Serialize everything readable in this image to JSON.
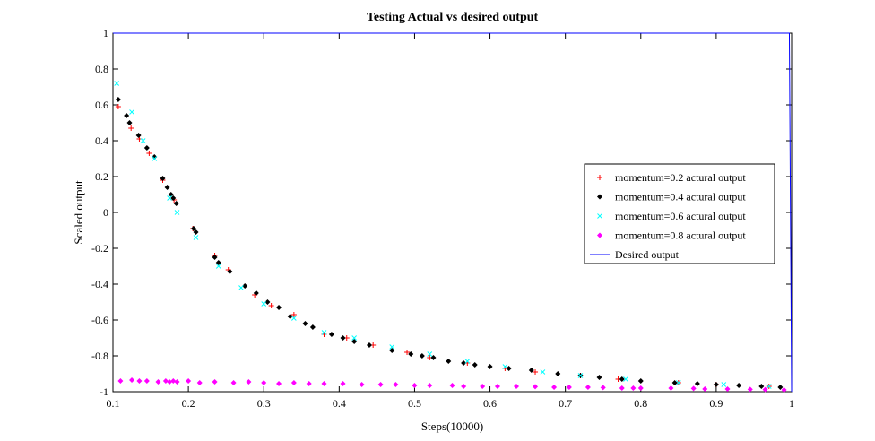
{
  "chart_data": {
    "type": "scatter",
    "title": "Testing Actual vs desired output",
    "xlabel": "Steps(10000)",
    "ylabel": "Scaled output",
    "xlim": [
      0.1,
      1.0
    ],
    "ylim": [
      -1,
      1
    ],
    "xticks": [
      "0.1",
      "0.2",
      "0.3",
      "0.4",
      "0.5",
      "0.6",
      "0.7",
      "0.8",
      "0.9",
      "1"
    ],
    "yticks": [
      "-1",
      "-0.8",
      "-0.6",
      "-0.4",
      "-0.2",
      "0",
      "0.2",
      "0.4",
      "0.6",
      "0.8",
      "1"
    ],
    "grid": false,
    "legend_position": "right",
    "series": [
      {
        "name": "momentum=0.2 actural output",
        "marker": "plus",
        "color": "#ff0000",
        "points": [
          [
            0.107,
            0.59
          ],
          [
            0.124,
            0.47
          ],
          [
            0.135,
            0.41
          ],
          [
            0.148,
            0.33
          ],
          [
            0.166,
            0.18
          ],
          [
            0.181,
            0.07
          ],
          [
            0.206,
            -0.09
          ],
          [
            0.235,
            -0.24
          ],
          [
            0.253,
            -0.32
          ],
          [
            0.288,
            -0.46
          ],
          [
            0.31,
            -0.52
          ],
          [
            0.34,
            -0.57
          ],
          [
            0.38,
            -0.68
          ],
          [
            0.41,
            -0.7
          ],
          [
            0.445,
            -0.74
          ],
          [
            0.49,
            -0.78
          ],
          [
            0.52,
            -0.81
          ],
          [
            0.57,
            -0.84
          ],
          [
            0.62,
            -0.87
          ],
          [
            0.66,
            -0.89
          ],
          [
            0.72,
            -0.91
          ],
          [
            0.77,
            -0.93
          ],
          [
            0.85,
            -0.95
          ],
          [
            0.9,
            -0.96
          ],
          [
            0.97,
            -0.97
          ]
        ]
      },
      {
        "name": "momentum=0.4 actural output",
        "marker": "diamond",
        "color": "#000000",
        "points": [
          [
            0.107,
            0.63
          ],
          [
            0.118,
            0.54
          ],
          [
            0.122,
            0.5
          ],
          [
            0.134,
            0.43
          ],
          [
            0.145,
            0.36
          ],
          [
            0.155,
            0.31
          ],
          [
            0.166,
            0.19
          ],
          [
            0.172,
            0.14
          ],
          [
            0.177,
            0.1
          ],
          [
            0.18,
            0.08
          ],
          [
            0.184,
            0.05
          ],
          [
            0.207,
            -0.09
          ],
          [
            0.21,
            -0.11
          ],
          [
            0.235,
            -0.25
          ],
          [
            0.24,
            -0.28
          ],
          [
            0.255,
            -0.33
          ],
          [
            0.275,
            -0.41
          ],
          [
            0.29,
            -0.45
          ],
          [
            0.305,
            -0.5
          ],
          [
            0.32,
            -0.53
          ],
          [
            0.335,
            -0.58
          ],
          [
            0.355,
            -0.62
          ],
          [
            0.365,
            -0.64
          ],
          [
            0.39,
            -0.68
          ],
          [
            0.405,
            -0.7
          ],
          [
            0.42,
            -0.72
          ],
          [
            0.44,
            -0.74
          ],
          [
            0.47,
            -0.77
          ],
          [
            0.495,
            -0.79
          ],
          [
            0.51,
            -0.8
          ],
          [
            0.525,
            -0.81
          ],
          [
            0.545,
            -0.83
          ],
          [
            0.565,
            -0.84
          ],
          [
            0.58,
            -0.85
          ],
          [
            0.6,
            -0.86
          ],
          [
            0.625,
            -0.87
          ],
          [
            0.655,
            -0.88
          ],
          [
            0.69,
            -0.9
          ],
          [
            0.72,
            -0.91
          ],
          [
            0.745,
            -0.92
          ],
          [
            0.775,
            -0.93
          ],
          [
            0.8,
            -0.94
          ],
          [
            0.845,
            -0.95
          ],
          [
            0.875,
            -0.955
          ],
          [
            0.9,
            -0.96
          ],
          [
            0.93,
            -0.965
          ],
          [
            0.96,
            -0.97
          ],
          [
            0.985,
            -0.975
          ]
        ]
      },
      {
        "name": "momentum=0.6 actural output",
        "marker": "x",
        "color": "#00ffff",
        "points": [
          [
            0.105,
            0.72
          ],
          [
            0.125,
            0.56
          ],
          [
            0.14,
            0.4
          ],
          [
            0.155,
            0.3
          ],
          [
            0.175,
            0.08
          ],
          [
            0.185,
            0.0
          ],
          [
            0.21,
            -0.14
          ],
          [
            0.24,
            -0.3
          ],
          [
            0.27,
            -0.42
          ],
          [
            0.3,
            -0.51
          ],
          [
            0.34,
            -0.59
          ],
          [
            0.38,
            -0.67
          ],
          [
            0.42,
            -0.7
          ],
          [
            0.47,
            -0.75
          ],
          [
            0.52,
            -0.79
          ],
          [
            0.57,
            -0.83
          ],
          [
            0.62,
            -0.86
          ],
          [
            0.67,
            -0.89
          ],
          [
            0.72,
            -0.91
          ],
          [
            0.78,
            -0.93
          ],
          [
            0.85,
            -0.95
          ],
          [
            0.91,
            -0.96
          ],
          [
            0.97,
            -0.97
          ]
        ]
      },
      {
        "name": "momentum=0.8 actural output",
        "marker": "diamond",
        "color": "#ff00ff",
        "points": [
          [
            0.11,
            -0.94
          ],
          [
            0.125,
            -0.935
          ],
          [
            0.135,
            -0.94
          ],
          [
            0.145,
            -0.94
          ],
          [
            0.16,
            -0.945
          ],
          [
            0.17,
            -0.94
          ],
          [
            0.175,
            -0.945
          ],
          [
            0.18,
            -0.94
          ],
          [
            0.185,
            -0.945
          ],
          [
            0.2,
            -0.94
          ],
          [
            0.215,
            -0.95
          ],
          [
            0.235,
            -0.945
          ],
          [
            0.26,
            -0.95
          ],
          [
            0.28,
            -0.945
          ],
          [
            0.3,
            -0.95
          ],
          [
            0.32,
            -0.955
          ],
          [
            0.34,
            -0.95
          ],
          [
            0.36,
            -0.955
          ],
          [
            0.38,
            -0.955
          ],
          [
            0.405,
            -0.955
          ],
          [
            0.43,
            -0.96
          ],
          [
            0.455,
            -0.96
          ],
          [
            0.475,
            -0.96
          ],
          [
            0.5,
            -0.965
          ],
          [
            0.52,
            -0.965
          ],
          [
            0.55,
            -0.965
          ],
          [
            0.565,
            -0.97
          ],
          [
            0.59,
            -0.97
          ],
          [
            0.61,
            -0.97
          ],
          [
            0.635,
            -0.97
          ],
          [
            0.66,
            -0.972
          ],
          [
            0.685,
            -0.975
          ],
          [
            0.705,
            -0.975
          ],
          [
            0.73,
            -0.975
          ],
          [
            0.75,
            -0.977
          ],
          [
            0.775,
            -0.98
          ],
          [
            0.79,
            -0.98
          ],
          [
            0.8,
            -0.98
          ],
          [
            0.84,
            -0.98
          ],
          [
            0.87,
            -0.982
          ],
          [
            0.885,
            -0.985
          ],
          [
            0.915,
            -0.985
          ],
          [
            0.945,
            -0.987
          ],
          [
            0.965,
            -0.988
          ],
          [
            0.99,
            -0.99
          ]
        ]
      },
      {
        "name": "Desired output",
        "marker": "line",
        "color": "#0000ff",
        "curve": "y = -1 + 0.2 * ln(0.9)^2 / ln(x)^2",
        "x_range": [
          0.1,
          1.0
        ]
      }
    ]
  }
}
